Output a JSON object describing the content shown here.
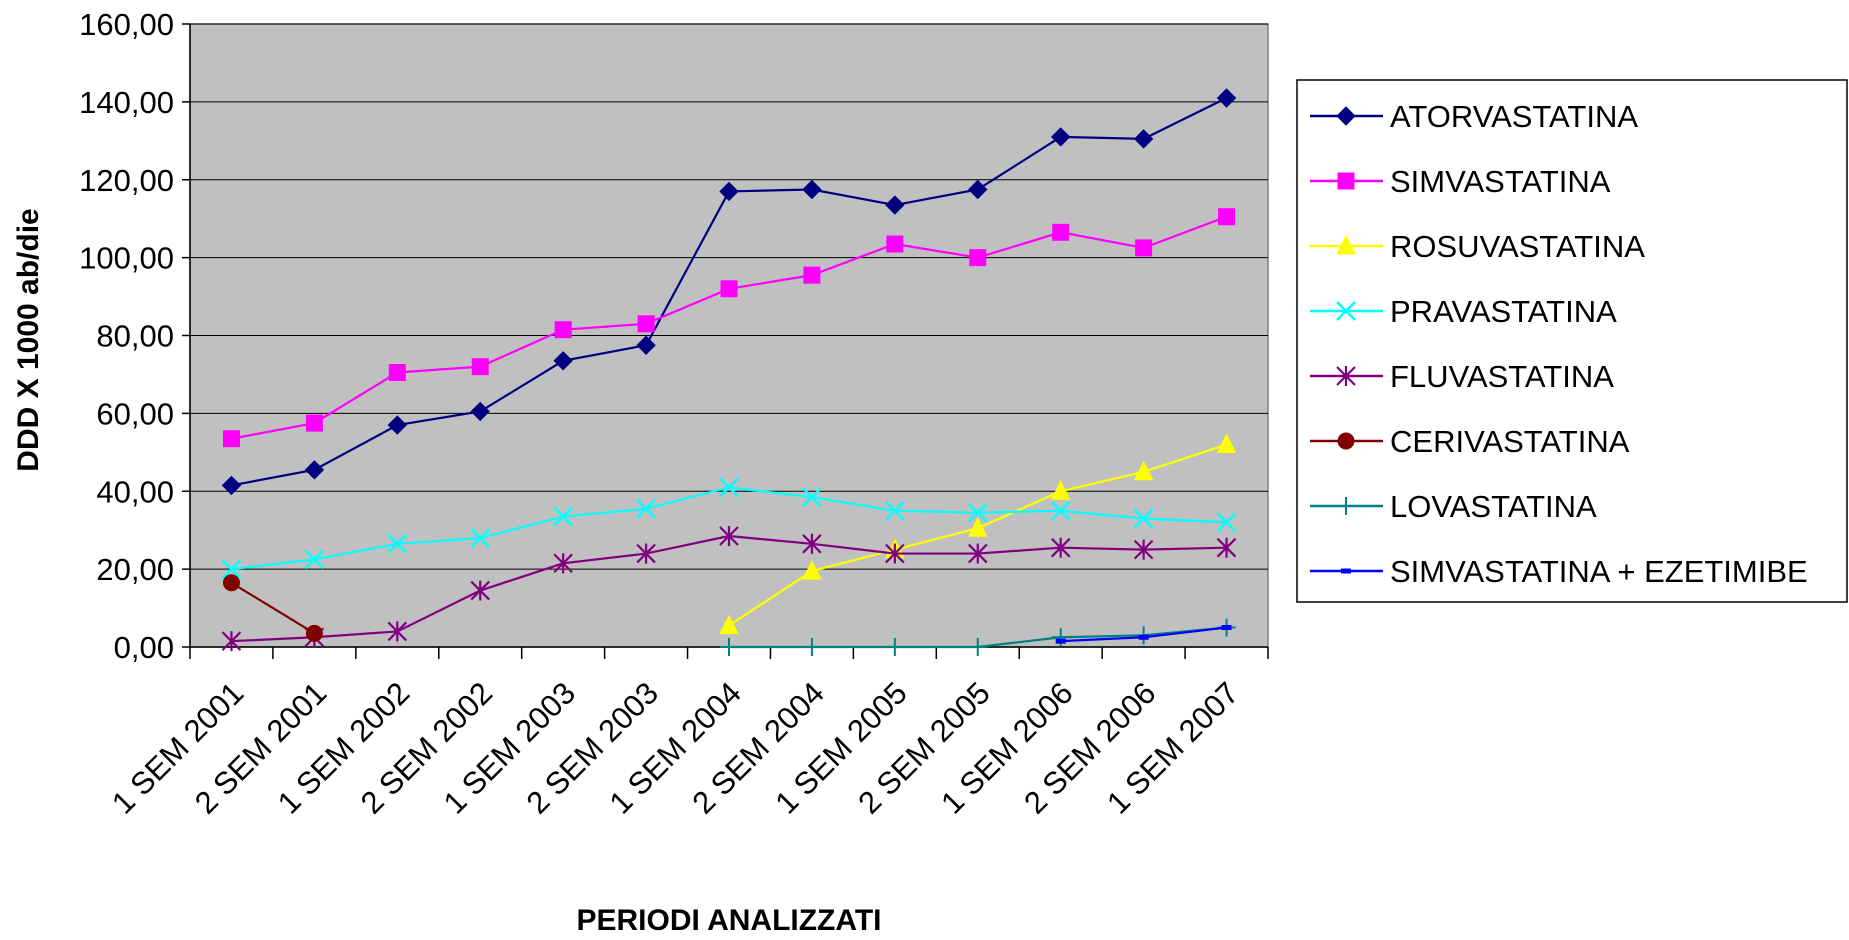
{
  "chart_data": {
    "type": "line",
    "xlabel": "PERIODI ANALIZZATI",
    "ylabel": "DDD X 1000 ab/die",
    "ylim": [
      0,
      160
    ],
    "yticks": [
      "0,00",
      "20,00",
      "40,00",
      "60,00",
      "80,00",
      "100,00",
      "120,00",
      "140,00",
      "160,00"
    ],
    "grid": true,
    "plot_background": "#c0c0c0",
    "legend_position": "right",
    "categories": [
      "1 SEM 2001",
      "2 SEM 2001",
      "1 SEM 2002",
      "2 SEM 2002",
      "1 SEM 2003",
      "2 SEM 2003",
      "1 SEM 2004",
      "2 SEM 2004",
      "1 SEM 2005",
      "2 SEM 2005",
      "1 SEM 2006",
      "2 SEM 2006",
      "1 SEM 2007"
    ],
    "series": [
      {
        "name": "ATORVASTATINA",
        "color": "#000080",
        "marker": "diamond",
        "values": [
          41.5,
          45.5,
          57.0,
          60.5,
          73.5,
          77.5,
          117.0,
          117.5,
          113.5,
          117.5,
          131.0,
          130.5,
          141.0
        ]
      },
      {
        "name": "SIMVASTATINA",
        "color": "#ff00ff",
        "marker": "square",
        "values": [
          53.5,
          57.5,
          70.5,
          72.0,
          81.5,
          83.0,
          92.0,
          95.5,
          103.5,
          100.0,
          106.5,
          102.5,
          110.5
        ]
      },
      {
        "name": "ROSUVASTATINA",
        "color": "#ffff00",
        "marker": "triangle",
        "values": [
          null,
          null,
          null,
          null,
          null,
          null,
          5.5,
          19.5,
          25.0,
          30.5,
          40.0,
          45.0,
          52.0
        ]
      },
      {
        "name": "PRAVASTATINA",
        "color": "#00ffff",
        "marker": "x",
        "values": [
          20.0,
          22.5,
          26.5,
          28.0,
          33.5,
          35.5,
          41.0,
          38.5,
          35.0,
          34.5,
          35.0,
          33.0,
          32.0
        ]
      },
      {
        "name": "FLUVASTATINA",
        "color": "#800080",
        "marker": "star",
        "values": [
          1.5,
          2.5,
          4.0,
          14.5,
          21.5,
          24.0,
          28.5,
          26.5,
          24.0,
          24.0,
          25.5,
          25.0,
          25.5
        ]
      },
      {
        "name": "CERIVASTATINA",
        "color": "#800000",
        "marker": "circle",
        "values": [
          16.5,
          3.5,
          null,
          null,
          null,
          null,
          null,
          null,
          null,
          null,
          null,
          null,
          null
        ]
      },
      {
        "name": "LOVASTATINA",
        "color": "#008080",
        "marker": "plus",
        "values": [
          null,
          null,
          null,
          null,
          null,
          null,
          0.0,
          0.0,
          0.0,
          0.0,
          2.5,
          3.0,
          5.0
        ]
      },
      {
        "name": "SIMVASTATINA + EZETIMIBE",
        "color": "#0000ff",
        "marker": "dash",
        "values": [
          null,
          null,
          null,
          null,
          null,
          null,
          null,
          null,
          null,
          null,
          1.5,
          2.5,
          5.0
        ]
      }
    ]
  }
}
